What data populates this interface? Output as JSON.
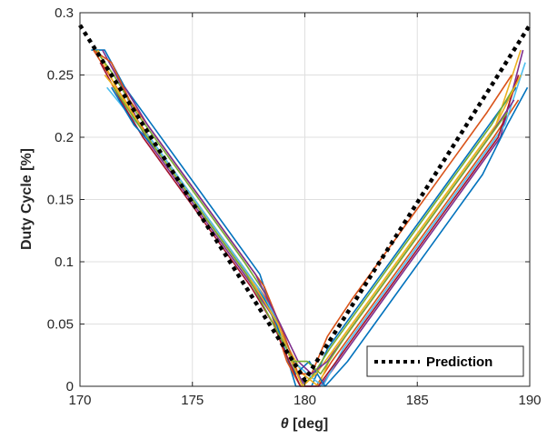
{
  "chart_data": {
    "type": "line",
    "title": "",
    "xlabel_symbol": "θ",
    "xlabel_rest": " [deg]",
    "ylabel": "Duty Cycle [%]",
    "xlim": [
      170,
      190
    ],
    "ylim": [
      0,
      0.3
    ],
    "grid": true,
    "legend_position": "bottom-right",
    "x_ticks": [
      "170",
      "175",
      "180",
      "185",
      "190"
    ],
    "y_ticks": [
      "0",
      "0.05",
      "0.1",
      "0.15",
      "0.2",
      "0.25",
      "0.3"
    ],
    "colors": [
      "#0072BD",
      "#D95319",
      "#EDB120",
      "#7E2F8E",
      "#77AC30",
      "#4DBEEE",
      "#A2142F"
    ],
    "prediction": {
      "name": "Prediction",
      "style": "dotted",
      "color": "#000000",
      "x": [
        170,
        180,
        190
      ],
      "y": [
        0.29,
        0.005,
        0.29
      ]
    },
    "measured_series": [
      {
        "x": [
          170.5,
          171.1,
          172.0,
          173.2,
          174.4,
          175.6,
          176.8,
          178.0,
          179.1,
          179.6,
          180.3,
          181.0,
          182.2,
          183.4,
          184.6,
          185.8,
          187.0,
          188.2,
          189.4
        ],
        "y": [
          0.27,
          0.27,
          0.24,
          0.21,
          0.18,
          0.15,
          0.12,
          0.09,
          0.03,
          0.0,
          0.0,
          0.03,
          0.06,
          0.09,
          0.12,
          0.15,
          0.18,
          0.21,
          0.24
        ]
      },
      {
        "x": [
          170.6,
          171.3,
          172.3,
          173.5,
          174.7,
          175.9,
          177.1,
          178.3,
          179.2,
          179.8,
          180.5,
          181.2,
          182.4,
          183.6,
          184.8,
          186.0,
          187.2,
          188.4,
          189.5
        ],
        "y": [
          0.27,
          0.25,
          0.22,
          0.19,
          0.16,
          0.13,
          0.1,
          0.07,
          0.02,
          0.0,
          0.0,
          0.02,
          0.05,
          0.08,
          0.11,
          0.14,
          0.17,
          0.2,
          0.23
        ]
      },
      {
        "x": [
          170.8,
          171.6,
          172.6,
          173.8,
          175.0,
          176.2,
          177.4,
          178.5,
          179.3,
          179.9,
          180.6,
          181.3,
          182.5,
          183.7,
          184.9,
          186.1,
          187.3,
          188.5,
          189.6
        ],
        "y": [
          0.27,
          0.24,
          0.21,
          0.18,
          0.15,
          0.12,
          0.09,
          0.06,
          0.03,
          0.01,
          0.0,
          0.03,
          0.06,
          0.09,
          0.12,
          0.15,
          0.18,
          0.21,
          0.27
        ]
      },
      {
        "x": [
          171.0,
          171.9,
          172.9,
          174.1,
          175.3,
          176.5,
          177.7,
          178.8,
          179.4,
          180.0,
          180.7,
          181.5,
          182.7,
          183.9,
          185.1,
          186.3,
          187.5,
          188.7,
          189.7
        ],
        "y": [
          0.27,
          0.24,
          0.2,
          0.17,
          0.14,
          0.11,
          0.08,
          0.05,
          0.02,
          0.0,
          0.0,
          0.02,
          0.05,
          0.08,
          0.11,
          0.14,
          0.17,
          0.2,
          0.27
        ]
      },
      {
        "x": [
          170.7,
          171.5,
          172.5,
          173.7,
          174.9,
          176.1,
          177.3,
          178.4,
          179.2,
          179.9,
          180.4,
          181.1,
          182.3,
          183.5,
          184.7,
          185.9,
          187.1,
          188.3,
          189.3
        ],
        "y": [
          0.27,
          0.25,
          0.22,
          0.19,
          0.16,
          0.13,
          0.1,
          0.07,
          0.03,
          0.0,
          0.01,
          0.03,
          0.06,
          0.09,
          0.12,
          0.15,
          0.18,
          0.21,
          0.24
        ]
      },
      {
        "x": [
          171.2,
          172.1,
          173.1,
          174.3,
          175.5,
          176.7,
          177.9,
          178.9,
          179.5,
          180.1,
          180.8,
          181.7,
          182.9,
          184.1,
          185.3,
          186.5,
          187.7,
          188.9,
          189.8
        ],
        "y": [
          0.24,
          0.22,
          0.2,
          0.17,
          0.14,
          0.11,
          0.08,
          0.05,
          0.02,
          0.01,
          0.0,
          0.03,
          0.06,
          0.09,
          0.12,
          0.15,
          0.18,
          0.21,
          0.26
        ]
      },
      {
        "x": [
          170.9,
          171.8,
          172.8,
          174.0,
          175.2,
          176.4,
          177.6,
          178.6,
          179.3,
          179.8,
          180.6,
          181.4,
          182.6,
          183.8,
          185.0,
          186.2,
          187.4,
          188.6,
          189.5
        ],
        "y": [
          0.26,
          0.23,
          0.2,
          0.17,
          0.14,
          0.11,
          0.08,
          0.05,
          0.02,
          0.0,
          0.0,
          0.02,
          0.05,
          0.08,
          0.11,
          0.14,
          0.17,
          0.2,
          0.25
        ]
      },
      {
        "x": [
          171.4,
          172.4,
          173.4,
          174.6,
          175.8,
          177.0,
          178.2,
          179.0,
          179.6,
          180.2,
          180.9,
          181.9,
          183.1,
          184.3,
          185.5,
          186.7,
          187.9,
          189.0,
          189.9
        ],
        "y": [
          0.24,
          0.21,
          0.19,
          0.16,
          0.13,
          0.1,
          0.07,
          0.04,
          0.01,
          0.02,
          0.0,
          0.02,
          0.05,
          0.08,
          0.11,
          0.14,
          0.17,
          0.21,
          0.24
        ]
      },
      {
        "x": [
          170.6,
          171.4,
          172.2,
          173.4,
          174.6,
          175.8,
          177.0,
          178.2,
          179.1,
          179.7,
          180.3,
          181.0,
          182.1,
          183.3,
          184.5,
          185.7,
          186.9,
          188.1,
          189.2
        ],
        "y": [
          0.27,
          0.26,
          0.23,
          0.2,
          0.17,
          0.14,
          0.11,
          0.08,
          0.04,
          0.01,
          0.01,
          0.04,
          0.07,
          0.1,
          0.13,
          0.16,
          0.19,
          0.22,
          0.25
        ]
      },
      {
        "x": [
          171.1,
          172.0,
          173.0,
          174.2,
          175.4,
          176.6,
          177.8,
          178.8,
          179.4,
          179.9,
          180.5,
          181.3,
          182.5,
          183.7,
          184.9,
          186.1,
          187.3,
          188.5,
          189.6
        ],
        "y": [
          0.25,
          0.23,
          0.2,
          0.17,
          0.14,
          0.11,
          0.08,
          0.05,
          0.02,
          0.0,
          0.01,
          0.03,
          0.06,
          0.09,
          0.12,
          0.15,
          0.18,
          0.21,
          0.25
        ]
      },
      {
        "x": [
          172.0,
          173.0,
          174.2,
          175.4,
          176.6,
          177.8,
          178.9,
          179.7,
          180.3,
          181.0,
          182.2,
          183.4,
          184.6,
          185.8,
          187.0,
          188.2,
          189.3
        ],
        "y": [
          0.24,
          0.21,
          0.18,
          0.15,
          0.12,
          0.09,
          0.05,
          0.02,
          0.01,
          0.02,
          0.05,
          0.08,
          0.11,
          0.14,
          0.17,
          0.2,
          0.23
        ]
      },
      {
        "x": [
          171.5,
          172.6,
          173.8,
          175.0,
          176.2,
          177.4,
          178.6,
          179.5,
          180.1,
          180.7,
          181.8,
          183.0,
          184.2,
          185.4,
          186.6,
          187.8,
          189.0
        ],
        "y": [
          0.24,
          0.21,
          0.18,
          0.15,
          0.12,
          0.09,
          0.05,
          0.02,
          0.02,
          0.01,
          0.04,
          0.07,
          0.1,
          0.13,
          0.16,
          0.19,
          0.22
        ]
      }
    ]
  }
}
